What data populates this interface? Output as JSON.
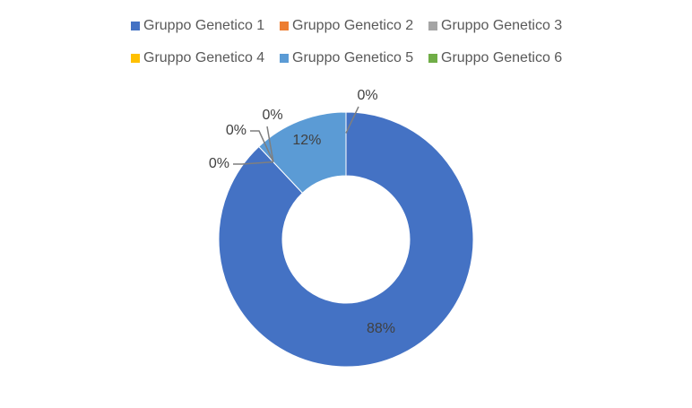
{
  "chart_data": {
    "type": "donut",
    "categories": [
      "Gruppo Genetico 1",
      "Gruppo Genetico 2",
      "Gruppo Genetico 3",
      "Gruppo Genetico 4",
      "Gruppo Genetico 5",
      "Gruppo Genetico 6"
    ],
    "values": [
      88,
      0,
      0,
      0,
      12,
      0
    ],
    "value_labels": [
      "88%",
      "0%",
      "0%",
      "0%",
      "12%",
      "0%"
    ],
    "colors": [
      "#4472c4",
      "#ed7d31",
      "#a5a5a5",
      "#ffc000",
      "#5b9bd5",
      "#70ad47"
    ],
    "legend": "top"
  }
}
